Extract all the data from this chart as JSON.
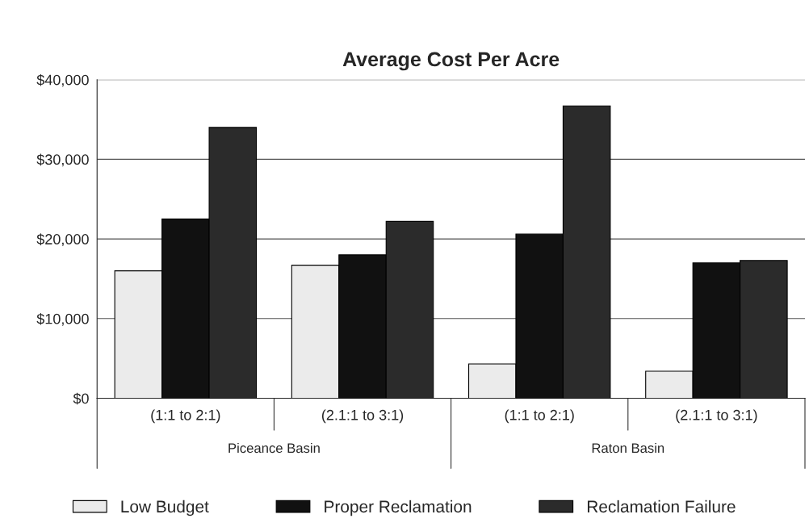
{
  "chart_data": {
    "type": "bar",
    "title": "Average Cost Per Acre",
    "categories": [
      "(1:1 to 2:1)",
      "(2.1:1 to 3:1)",
      "(1:1 to 2:1)",
      "(2.1:1 to 3:1)"
    ],
    "series": [
      {
        "name": "Low Budget",
        "color": "#ebebeb",
        "values": [
          16000,
          16700,
          4300,
          3400
        ]
      },
      {
        "name": "Proper Reclamation",
        "color": "#111111",
        "values": [
          22500,
          18000,
          20600,
          17000
        ]
      },
      {
        "name": "Reclamation Failure",
        "color": "#2b2b2b",
        "values": [
          34000,
          22200,
          36700,
          17300
        ]
      }
    ],
    "annotations": [
      "Piceance Basin",
      "Raton Basin"
    ],
    "ylim": [
      0,
      40000
    ],
    "yticks": [
      {
        "value": 0,
        "label": "$0"
      },
      {
        "value": 10000,
        "label": "$10,000"
      },
      {
        "value": 20000,
        "label": "$20,000"
      },
      {
        "value": 30000,
        "label": "$30,000"
      },
      {
        "value": 40000,
        "label": "$40,000"
      }
    ],
    "grid": "y",
    "legend": "bottom"
  }
}
